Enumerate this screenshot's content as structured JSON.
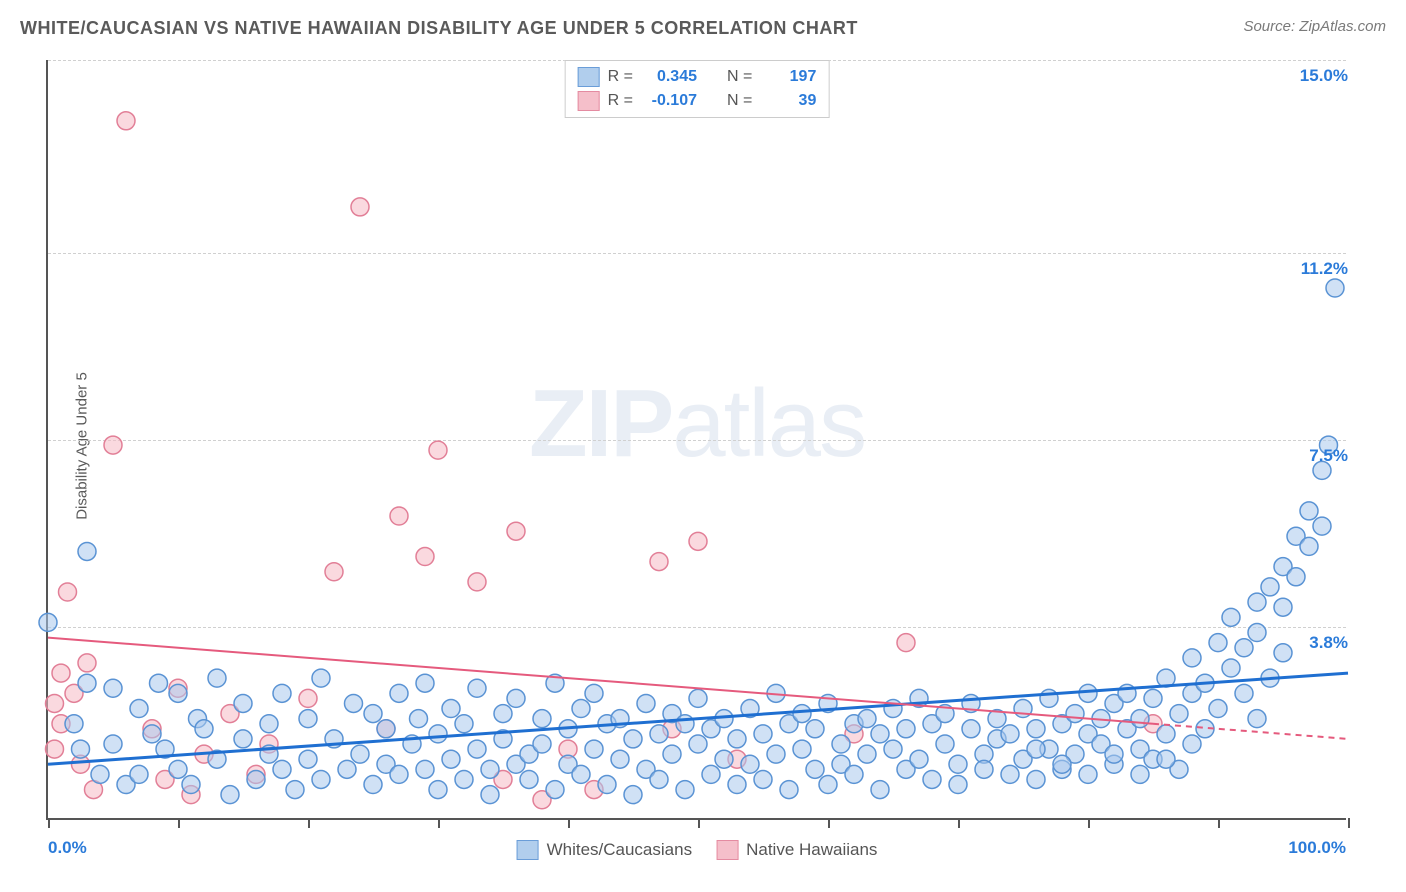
{
  "title": "WHITE/CAUCASIAN VS NATIVE HAWAIIAN DISABILITY AGE UNDER 5 CORRELATION CHART",
  "source": "Source: ZipAtlas.com",
  "y_axis_label": "Disability Age Under 5",
  "watermark_a": "ZIP",
  "watermark_b": "atlas",
  "chart": {
    "type": "scatter",
    "xlim": [
      0,
      100
    ],
    "ylim": [
      0,
      15
    ],
    "x_ticks": [
      0,
      10,
      20,
      30,
      40,
      50,
      60,
      70,
      80,
      90,
      100
    ],
    "x_tick_labels_shown": {
      "0": "0.0%",
      "100": "100.0%"
    },
    "y_grid": [
      3.8,
      7.5,
      11.2,
      15.0
    ],
    "y_tick_labels": [
      "3.8%",
      "7.5%",
      "11.2%",
      "15.0%"
    ],
    "background_color": "#ffffff",
    "grid_color": "#d0d0d0",
    "axis_color": "#555555",
    "marker_radius": 9,
    "marker_stroke_width": 1.5,
    "series": [
      {
        "name": "Whites/Caucasians",
        "fill": "#a9c9ec",
        "fill_opacity": 0.55,
        "stroke": "#5a93d4",
        "R": "0.345",
        "N": "197",
        "trend": {
          "color": "#1f6fd1",
          "width": 3,
          "y_at_x0": 1.1,
          "y_at_x100": 2.9,
          "dashed_after_x": null
        },
        "points": [
          [
            0,
            3.9
          ],
          [
            3,
            5.3
          ],
          [
            3,
            2.7
          ],
          [
            2,
            1.9
          ],
          [
            2.5,
            1.4
          ],
          [
            4,
            0.9
          ],
          [
            5,
            2.6
          ],
          [
            5,
            1.5
          ],
          [
            6,
            0.7
          ],
          [
            7,
            2.2
          ],
          [
            7,
            0.9
          ],
          [
            8,
            1.7
          ],
          [
            8.5,
            2.7
          ],
          [
            9,
            1.4
          ],
          [
            10,
            2.5
          ],
          [
            10,
            1.0
          ],
          [
            11,
            0.7
          ],
          [
            11.5,
            2.0
          ],
          [
            12,
            1.8
          ],
          [
            13,
            1.2
          ],
          [
            13,
            2.8
          ],
          [
            14,
            0.5
          ],
          [
            15,
            1.6
          ],
          [
            15,
            2.3
          ],
          [
            16,
            0.8
          ],
          [
            17,
            1.9
          ],
          [
            17,
            1.3
          ],
          [
            18,
            2.5
          ],
          [
            18,
            1.0
          ],
          [
            19,
            0.6
          ],
          [
            20,
            2.0
          ],
          [
            20,
            1.2
          ],
          [
            21,
            2.8
          ],
          [
            21,
            0.8
          ],
          [
            22,
            1.6
          ],
          [
            23,
            1.0
          ],
          [
            23.5,
            2.3
          ],
          [
            24,
            1.3
          ],
          [
            25,
            0.7
          ],
          [
            25,
            2.1
          ],
          [
            26,
            1.8
          ],
          [
            26,
            1.1
          ],
          [
            27,
            2.5
          ],
          [
            27,
            0.9
          ],
          [
            28,
            1.5
          ],
          [
            28.5,
            2.0
          ],
          [
            29,
            1.0
          ],
          [
            29,
            2.7
          ],
          [
            30,
            0.6
          ],
          [
            30,
            1.7
          ],
          [
            31,
            1.2
          ],
          [
            31,
            2.2
          ],
          [
            32,
            0.8
          ],
          [
            32,
            1.9
          ],
          [
            33,
            1.4
          ],
          [
            33,
            2.6
          ],
          [
            34,
            1.0
          ],
          [
            34,
            0.5
          ],
          [
            35,
            1.6
          ],
          [
            35,
            2.1
          ],
          [
            36,
            1.1
          ],
          [
            36,
            2.4
          ],
          [
            37,
            0.8
          ],
          [
            37,
            1.3
          ],
          [
            38,
            2.0
          ],
          [
            38,
            1.5
          ],
          [
            39,
            0.6
          ],
          [
            39,
            2.7
          ],
          [
            40,
            1.1
          ],
          [
            40,
            1.8
          ],
          [
            41,
            2.2
          ],
          [
            41,
            0.9
          ],
          [
            42,
            1.4
          ],
          [
            42,
            2.5
          ],
          [
            43,
            0.7
          ],
          [
            43,
            1.9
          ],
          [
            44,
            1.2
          ],
          [
            44,
            2.0
          ],
          [
            45,
            0.5
          ],
          [
            45,
            1.6
          ],
          [
            46,
            2.3
          ],
          [
            46,
            1.0
          ],
          [
            47,
            1.7
          ],
          [
            47,
            0.8
          ],
          [
            48,
            2.1
          ],
          [
            48,
            1.3
          ],
          [
            49,
            0.6
          ],
          [
            49,
            1.9
          ],
          [
            50,
            1.5
          ],
          [
            50,
            2.4
          ],
          [
            51,
            0.9
          ],
          [
            51,
            1.8
          ],
          [
            52,
            1.2
          ],
          [
            52,
            2.0
          ],
          [
            53,
            0.7
          ],
          [
            53,
            1.6
          ],
          [
            54,
            2.2
          ],
          [
            54,
            1.1
          ],
          [
            55,
            1.7
          ],
          [
            55,
            0.8
          ],
          [
            56,
            2.5
          ],
          [
            56,
            1.3
          ],
          [
            57,
            1.9
          ],
          [
            57,
            0.6
          ],
          [
            58,
            1.4
          ],
          [
            58,
            2.1
          ],
          [
            59,
            1.0
          ],
          [
            59,
            1.8
          ],
          [
            60,
            0.7
          ],
          [
            60,
            2.3
          ],
          [
            61,
            1.5
          ],
          [
            61,
            1.1
          ],
          [
            62,
            1.9
          ],
          [
            62,
            0.9
          ],
          [
            63,
            2.0
          ],
          [
            63,
            1.3
          ],
          [
            64,
            1.7
          ],
          [
            64,
            0.6
          ],
          [
            65,
            2.2
          ],
          [
            65,
            1.4
          ],
          [
            66,
            1.0
          ],
          [
            66,
            1.8
          ],
          [
            67,
            2.4
          ],
          [
            67,
            1.2
          ],
          [
            68,
            0.8
          ],
          [
            68,
            1.9
          ],
          [
            69,
            1.5
          ],
          [
            69,
            2.1
          ],
          [
            70,
            1.1
          ],
          [
            70,
            0.7
          ],
          [
            71,
            1.8
          ],
          [
            71,
            2.3
          ],
          [
            72,
            1.3
          ],
          [
            72,
            1.0
          ],
          [
            73,
            2.0
          ],
          [
            73,
            1.6
          ],
          [
            74,
            0.9
          ],
          [
            74,
            1.7
          ],
          [
            75,
            2.2
          ],
          [
            75,
            1.2
          ],
          [
            76,
            1.8
          ],
          [
            76,
            0.8
          ],
          [
            77,
            2.4
          ],
          [
            77,
            1.4
          ],
          [
            78,
            1.0
          ],
          [
            78,
            1.9
          ],
          [
            79,
            2.1
          ],
          [
            79,
            1.3
          ],
          [
            80,
            1.7
          ],
          [
            80,
            0.9
          ],
          [
            81,
            2.0
          ],
          [
            81,
            1.5
          ],
          [
            82,
            2.3
          ],
          [
            82,
            1.1
          ],
          [
            83,
            1.8
          ],
          [
            83,
            2.5
          ],
          [
            84,
            1.4
          ],
          [
            84,
            2.0
          ],
          [
            85,
            1.2
          ],
          [
            85,
            2.4
          ],
          [
            86,
            1.7
          ],
          [
            86,
            2.8
          ],
          [
            87,
            2.1
          ],
          [
            87,
            1.0
          ],
          [
            88,
            2.5
          ],
          [
            88,
            3.2
          ],
          [
            89,
            1.8
          ],
          [
            89,
            2.7
          ],
          [
            90,
            3.5
          ],
          [
            90,
            2.2
          ],
          [
            91,
            3.0
          ],
          [
            91,
            4.0
          ],
          [
            92,
            3.4
          ],
          [
            92,
            2.5
          ],
          [
            93,
            4.3
          ],
          [
            93,
            3.7
          ],
          [
            94,
            4.6
          ],
          [
            94,
            2.8
          ],
          [
            95,
            5.0
          ],
          [
            95,
            4.2
          ],
          [
            96,
            5.6
          ],
          [
            96,
            4.8
          ],
          [
            97,
            6.1
          ],
          [
            97,
            5.4
          ],
          [
            98,
            6.9
          ],
          [
            98,
            5.8
          ],
          [
            98.5,
            7.4
          ],
          [
            99,
            10.5
          ],
          [
            95,
            3.3
          ],
          [
            93,
            2.0
          ],
          [
            88,
            1.5
          ],
          [
            86,
            1.2
          ],
          [
            84,
            0.9
          ],
          [
            82,
            1.3
          ],
          [
            80,
            2.5
          ],
          [
            78,
            1.1
          ],
          [
            76,
            1.4
          ]
        ]
      },
      {
        "name": "Native Hawaiians",
        "fill": "#f5b9c5",
        "fill_opacity": 0.55,
        "stroke": "#e27f97",
        "R": "-0.107",
        "N": "39",
        "trend": {
          "color": "#e55a7d",
          "width": 2,
          "y_at_x0": 3.6,
          "y_at_x100": 1.6,
          "dashed_after_x": 85
        },
        "points": [
          [
            0.5,
            2.3
          ],
          [
            0.5,
            1.4
          ],
          [
            1,
            2.9
          ],
          [
            1,
            1.9
          ],
          [
            1.5,
            4.5
          ],
          [
            2,
            2.5
          ],
          [
            2.5,
            1.1
          ],
          [
            3,
            3.1
          ],
          [
            3.5,
            0.6
          ],
          [
            5,
            7.4
          ],
          [
            6,
            13.8
          ],
          [
            8,
            1.8
          ],
          [
            9,
            0.8
          ],
          [
            10,
            2.6
          ],
          [
            11,
            0.5
          ],
          [
            12,
            1.3
          ],
          [
            14,
            2.1
          ],
          [
            16,
            0.9
          ],
          [
            17,
            1.5
          ],
          [
            20,
            2.4
          ],
          [
            22,
            4.9
          ],
          [
            24,
            12.1
          ],
          [
            26,
            1.8
          ],
          [
            27,
            6.0
          ],
          [
            29,
            5.2
          ],
          [
            30,
            7.3
          ],
          [
            33,
            4.7
          ],
          [
            35,
            0.8
          ],
          [
            36,
            5.7
          ],
          [
            38,
            0.4
          ],
          [
            40,
            1.4
          ],
          [
            42,
            0.6
          ],
          [
            47,
            5.1
          ],
          [
            48,
            1.8
          ],
          [
            50,
            5.5
          ],
          [
            53,
            1.2
          ],
          [
            62,
            1.7
          ],
          [
            66,
            3.5
          ],
          [
            85,
            1.9
          ]
        ]
      }
    ]
  },
  "legend": {
    "series1_label": "Whites/Caucasians",
    "series2_label": "Native Hawaiians"
  },
  "stat_box": {
    "r_label": "R =",
    "n_label": "N ="
  }
}
